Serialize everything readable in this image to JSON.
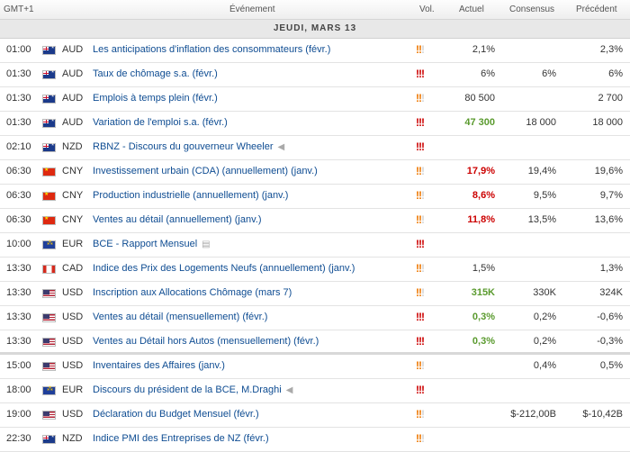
{
  "header": {
    "timezone": "GMT+1",
    "event": "Événement",
    "vol": "Vol.",
    "actual": "Actuel",
    "consensus": "Consensus",
    "previous": "Précédent"
  },
  "day_label": "JEUDI, MARS 13",
  "colors": {
    "high": "#cc0000",
    "medium": "#ee7700",
    "beat": "#5a9a2e",
    "miss": "#cc0000",
    "link": "#0e4c92"
  },
  "rows": [
    {
      "time": "01:00",
      "flag": "au",
      "currency": "AUD",
      "event": "Les anticipations d'inflation des consommateurs (févr.)",
      "vol": 2,
      "actual": "2,1%",
      "actual_color": "",
      "consensus": "",
      "previous": "2,3%",
      "icon": ""
    },
    {
      "time": "01:30",
      "flag": "au",
      "currency": "AUD",
      "event": "Taux de chômage s.a. (févr.)",
      "vol": 3,
      "actual": "6%",
      "actual_color": "",
      "consensus": "6%",
      "previous": "6%",
      "icon": ""
    },
    {
      "time": "01:30",
      "flag": "au",
      "currency": "AUD",
      "event": "Emplois à temps plein (févr.)",
      "vol": 2,
      "actual": "80 500",
      "actual_color": "",
      "consensus": "",
      "previous": "2 700",
      "icon": ""
    },
    {
      "time": "01:30",
      "flag": "au",
      "currency": "AUD",
      "event": "Variation de l'emploi s.a. (févr.)",
      "vol": 3,
      "actual": "47 300",
      "actual_color": "green",
      "consensus": "18 000",
      "previous": "18 000",
      "icon": ""
    },
    {
      "time": "02:10",
      "flag": "nz",
      "currency": "NZD",
      "event": "RBNZ - Discours du gouverneur Wheeler",
      "vol": 3,
      "actual": "",
      "actual_color": "",
      "consensus": "",
      "previous": "",
      "icon": "speech-icon"
    },
    {
      "time": "06:30",
      "flag": "cn",
      "currency": "CNY",
      "event": "Investissement urbain (CDA) (annuellement) (janv.)",
      "vol": 2,
      "actual": "17,9%",
      "actual_color": "red",
      "consensus": "19,4%",
      "previous": "19,6%",
      "icon": ""
    },
    {
      "time": "06:30",
      "flag": "cn",
      "currency": "CNY",
      "event": "Production industrielle (annuellement) (janv.)",
      "vol": 2,
      "actual": "8,6%",
      "actual_color": "red",
      "consensus": "9,5%",
      "previous": "9,7%",
      "icon": ""
    },
    {
      "time": "06:30",
      "flag": "cn",
      "currency": "CNY",
      "event": "Ventes au détail (annuellement) (janv.)",
      "vol": 2,
      "actual": "11,8%",
      "actual_color": "red",
      "consensus": "13,5%",
      "previous": "13,6%",
      "icon": ""
    },
    {
      "time": "10:00",
      "flag": "eu",
      "currency": "EUR",
      "event": "BCE - Rapport Mensuel",
      "vol": 3,
      "actual": "",
      "actual_color": "",
      "consensus": "",
      "previous": "",
      "icon": "report-icon"
    },
    {
      "time": "13:30",
      "flag": "ca",
      "currency": "CAD",
      "event": "Indice des Prix des Logements Neufs (annuellement) (janv.)",
      "vol": 2,
      "actual": "1,5%",
      "actual_color": "",
      "consensus": "",
      "previous": "1,3%",
      "icon": ""
    },
    {
      "time": "13:30",
      "flag": "us",
      "currency": "USD",
      "event": "Inscription aux Allocations Chômage (mars 7)",
      "vol": 2,
      "actual": "315K",
      "actual_color": "green",
      "consensus": "330K",
      "previous": "324K",
      "icon": ""
    },
    {
      "time": "13:30",
      "flag": "us",
      "currency": "USD",
      "event": "Ventes au détail (mensuellement) (févr.)",
      "vol": 3,
      "actual": "0,3%",
      "actual_color": "green",
      "consensus": "0,2%",
      "previous": "-0,6%",
      "icon": ""
    },
    {
      "time": "13:30",
      "flag": "us",
      "currency": "USD",
      "event": "Ventes au Détail hors Autos (mensuellement) (févr.)",
      "vol": 3,
      "actual": "0,3%",
      "actual_color": "green",
      "consensus": "0,2%",
      "previous": "-0,3%",
      "icon": ""
    },
    {
      "time": "15:00",
      "flag": "us",
      "currency": "USD",
      "event": "Inventaires des Affaires (janv.)",
      "vol": 2,
      "actual": "",
      "actual_color": "",
      "consensus": "0,4%",
      "previous": "0,5%",
      "icon": ""
    },
    {
      "time": "18:00",
      "flag": "eu",
      "currency": "EUR",
      "event": "Discours du président de la BCE, M.Draghi",
      "vol": 3,
      "actual": "",
      "actual_color": "",
      "consensus": "",
      "previous": "",
      "icon": "speech-icon"
    },
    {
      "time": "19:00",
      "flag": "us",
      "currency": "USD",
      "event": "Déclaration du Budget Mensuel (févr.)",
      "vol": 2,
      "actual": "",
      "actual_color": "",
      "consensus": "$-212,00B",
      "previous": "$-10,42B",
      "icon": ""
    },
    {
      "time": "22:30",
      "flag": "nz",
      "currency": "NZD",
      "event": "Indice PMI des Entreprises de NZ (févr.)",
      "vol": 2,
      "actual": "",
      "actual_color": "",
      "consensus": "",
      "previous": "",
      "icon": ""
    }
  ]
}
